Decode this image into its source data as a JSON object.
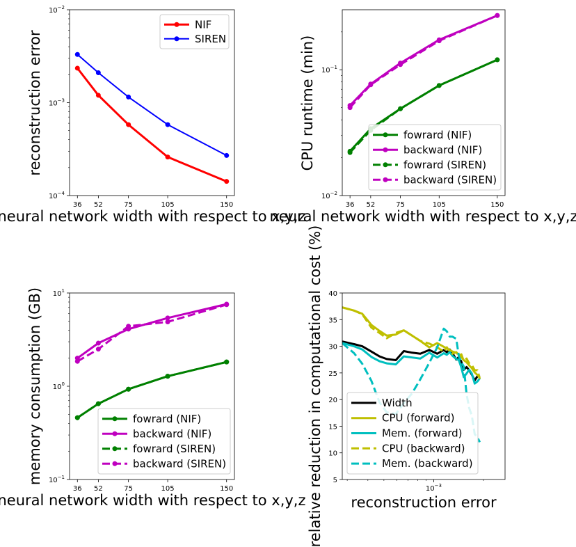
{
  "chart_data": [
    {
      "id": "p1",
      "type": "line",
      "xlabel": "neural network width with respect to x,y,z",
      "ylabel": "reconstruction error",
      "xscale": "linear",
      "yscale": "log",
      "xlim": [
        30,
        156
      ],
      "ylim": [
        0.0001,
        0.01
      ],
      "xticks": [
        36,
        52,
        75,
        105,
        150
      ],
      "yticks": [
        {
          "v": 0.0001,
          "m": "10",
          "e": "−4"
        },
        {
          "v": 0.001,
          "m": "10",
          "e": "−3"
        },
        {
          "v": 0.01,
          "m": "10",
          "e": "−2"
        }
      ],
      "legend_position": "upper right",
      "grid": false,
      "series": [
        {
          "name": "NIF",
          "color": "#ff0000",
          "dash": "solid",
          "width": 3,
          "marker": true,
          "x": [
            36,
            52,
            75,
            105,
            150
          ],
          "y": [
            0.00235,
            0.0012,
            0.00058,
            0.00026,
            0.000142
          ]
        },
        {
          "name": "SIREN",
          "color": "#0000ff",
          "dash": "solid",
          "width": 2,
          "marker": true,
          "x": [
            36,
            52,
            75,
            105,
            150
          ],
          "y": [
            0.0033,
            0.0021,
            0.00115,
            0.00058,
            0.00027
          ]
        }
      ]
    },
    {
      "id": "p2",
      "type": "line",
      "xlabel": "neural network width with respect to x,y,z",
      "ylabel": "CPU runtime (min)",
      "xscale": "linear",
      "yscale": "log",
      "xlim": [
        30,
        156
      ],
      "ylim": [
        0.01,
        0.3
      ],
      "xticks": [
        36,
        52,
        75,
        105,
        150
      ],
      "yticks": [
        {
          "v": 0.01,
          "m": "10",
          "e": "−2"
        },
        {
          "v": 0.1,
          "m": "10",
          "e": "−1"
        }
      ],
      "legend_position": "lower right",
      "grid": false,
      "series": [
        {
          "name": "fowrard (NIF)",
          "color": "#008000",
          "dash": "solid",
          "width": 3,
          "marker": true,
          "x": [
            36,
            52,
            75,
            105,
            150
          ],
          "y": [
            0.0225,
            0.034,
            0.049,
            0.075,
            0.12
          ]
        },
        {
          "name": "backward (NIF)",
          "color": "#bf00bf",
          "dash": "solid",
          "width": 3,
          "marker": true,
          "x": [
            36,
            52,
            75,
            105,
            150
          ],
          "y": [
            0.052,
            0.077,
            0.113,
            0.173,
            0.27
          ]
        },
        {
          "name": "fowrard (SIREN)",
          "color": "#008000",
          "dash": "dashed",
          "width": 3,
          "marker": true,
          "x": [
            36,
            52,
            75,
            105,
            150
          ],
          "y": [
            0.022,
            0.033,
            0.049,
            0.075,
            0.12
          ]
        },
        {
          "name": "backward (SIREN)",
          "color": "#bf00bf",
          "dash": "dashed",
          "width": 3,
          "marker": true,
          "x": [
            36,
            52,
            75,
            105,
            150
          ],
          "y": [
            0.05,
            0.076,
            0.11,
            0.17,
            0.27
          ]
        }
      ]
    },
    {
      "id": "p3",
      "type": "line",
      "xlabel": "neural network width with respect to x,y,z",
      "ylabel": "memory consumption (GB)",
      "xscale": "linear",
      "yscale": "log",
      "xlim": [
        30,
        156
      ],
      "ylim": [
        0.1,
        10
      ],
      "xticks": [
        36,
        52,
        75,
        105,
        150
      ],
      "yticks": [
        {
          "v": 0.1,
          "m": "10",
          "e": "−1"
        },
        {
          "v": 1,
          "m": "10",
          "e": "0"
        },
        {
          "v": 10,
          "m": "10",
          "e": "1"
        }
      ],
      "legend_position": "lower right",
      "grid": false,
      "series": [
        {
          "name": "fowrard (NIF)",
          "color": "#008000",
          "dash": "solid",
          "width": 3,
          "marker": true,
          "x": [
            36,
            52,
            75,
            105,
            150
          ],
          "y": [
            0.46,
            0.65,
            0.93,
            1.28,
            1.82
          ]
        },
        {
          "name": "backward (NIF)",
          "color": "#bf00bf",
          "dash": "solid",
          "width": 3,
          "marker": true,
          "x": [
            36,
            52,
            75,
            105,
            150
          ],
          "y": [
            2.0,
            2.9,
            4.1,
            5.4,
            7.6
          ]
        },
        {
          "name": "fowrard (SIREN)",
          "color": "#008000",
          "dash": "dashed",
          "width": 3,
          "marker": true,
          "x": [
            36,
            52,
            75,
            105,
            150
          ],
          "y": [
            0.46,
            0.65,
            0.93,
            1.28,
            1.82
          ]
        },
        {
          "name": "backward (SIREN)",
          "color": "#bf00bf",
          "dash": "dashed",
          "width": 3,
          "marker": true,
          "x": [
            36,
            52,
            75,
            105,
            150
          ],
          "y": [
            1.85,
            2.5,
            4.4,
            4.9,
            7.5
          ]
        }
      ]
    },
    {
      "id": "p4",
      "type": "line",
      "xlabel": "reconstruction error",
      "ylabel": "relative reduction in computational cost (%)",
      "xscale": "log",
      "yscale": "linear",
      "xlim": [
        0.00028,
        0.0027
      ],
      "ylim": [
        5,
        40
      ],
      "xticks": [
        {
          "v": 0.001,
          "m": "10",
          "e": "−3"
        }
      ],
      "yticks": [
        5,
        10,
        15,
        20,
        25,
        30,
        35,
        40
      ],
      "legend_position": "lower left",
      "grid": false,
      "series": [
        {
          "name": "Width",
          "color": "#000000",
          "dash": "solid",
          "width": 3,
          "marker": false,
          "x": [
            0.00028,
            0.00033,
            0.00037,
            0.00042,
            0.00047,
            0.00052,
            0.00059,
            0.00066,
            0.00074,
            0.00083,
            0.00094,
            0.00105,
            0.00115,
            0.0012,
            0.00125,
            0.0013,
            0.00137,
            0.00142,
            0.00147,
            0.00152,
            0.00158,
            0.00164,
            0.0017,
            0.00177,
            0.00184,
            0.0019
          ],
          "y": [
            30.9,
            30.4,
            30.0,
            29.0,
            28.1,
            27.6,
            27.4,
            29.1,
            28.8,
            28.6,
            29.3,
            28.6,
            29.3,
            28.9,
            29.4,
            28.7,
            27.5,
            28.0,
            27.1,
            25.6,
            26.1,
            25.5,
            24.7,
            23.6,
            24.4,
            24.6
          ]
        },
        {
          "name": "CPU (forward)",
          "color": "#bfbf00",
          "dash": "solid",
          "width": 3,
          "marker": false,
          "x": [
            0.00028,
            0.00033,
            0.00037,
            0.00042,
            0.00047,
            0.00052,
            0.00059,
            0.00066,
            0.00074,
            0.00083,
            0.00094,
            0.00105,
            0.00115,
            0.0012,
            0.00125,
            0.0013,
            0.00137,
            0.00142,
            0.00147,
            0.00152,
            0.00158,
            0.00164,
            0.0017,
            0.00177,
            0.00184,
            0.0019
          ],
          "y": [
            37.3,
            36.7,
            36.1,
            34.0,
            32.9,
            32.0,
            32.2,
            33.0,
            32.0,
            31.0,
            29.8,
            30.6,
            29.9,
            29.6,
            29.3,
            29.0,
            28.8,
            28.5,
            28.0,
            27.4,
            27.0,
            26.4,
            25.9,
            25.1,
            24.6,
            24.1
          ]
        },
        {
          "name": "Mem. (forward)",
          "color": "#00bfbf",
          "dash": "solid",
          "width": 3,
          "marker": false,
          "x": [
            0.00028,
            0.00033,
            0.00037,
            0.00042,
            0.00047,
            0.00052,
            0.00059,
            0.00066,
            0.00074,
            0.00083,
            0.00094,
            0.00105,
            0.00115,
            0.0012,
            0.00125,
            0.0013,
            0.00137,
            0.00142,
            0.00147,
            0.00152,
            0.00158,
            0.00164,
            0.0017,
            0.00177,
            0.00184,
            0.0019
          ],
          "y": [
            30.6,
            30.0,
            29.4,
            28.0,
            27.2,
            26.8,
            26.6,
            28.1,
            27.9,
            27.7,
            28.8,
            27.9,
            28.7,
            28.4,
            28.9,
            28.2,
            27.6,
            27.4,
            26.0,
            24.2,
            24.9,
            25.6,
            24.9,
            23.0,
            23.4,
            24.0
          ]
        },
        {
          "name": "CPU (backward)",
          "color": "#bfbf00",
          "dash": "dashed",
          "width": 3,
          "marker": false,
          "x": [
            0.00028,
            0.00033,
            0.00037,
            0.00042,
            0.00047,
            0.00052,
            0.00059,
            0.00066,
            0.00074,
            0.00083,
            0.00094,
            0.00105,
            0.00115,
            0.0012,
            0.00125,
            0.0013,
            0.00137,
            0.00142,
            0.00147,
            0.00152,
            0.00158,
            0.00164,
            0.0017,
            0.00177,
            0.00184,
            0.0019
          ],
          "y": [
            37.3,
            36.7,
            36.0,
            33.5,
            32.5,
            31.5,
            32.5,
            33.0,
            32.0,
            31.0,
            30.5,
            29.8,
            29.0,
            29.8,
            29.0,
            28.6,
            28.9,
            28.2,
            28.5,
            27.2,
            27.7,
            26.8,
            26.5,
            25.5,
            25.5,
            23.9
          ]
        },
        {
          "name": "Mem. (backward)",
          "color": "#00bfbf",
          "dash": "dashed",
          "width": 3,
          "marker": false,
          "x": [
            0.00028,
            0.00033,
            0.00037,
            0.00042,
            0.00047,
            0.00052,
            0.00059,
            0.00066,
            0.00074,
            0.00083,
            0.00094,
            0.00105,
            0.00115,
            0.0012,
            0.00125,
            0.0013,
            0.00137,
            0.00142,
            0.00147,
            0.00152,
            0.00158,
            0.00164,
            0.0017,
            0.00177,
            0.00184,
            0.0019
          ],
          "y": [
            30.6,
            28.7,
            26.7,
            23.5,
            19.5,
            17.6,
            17.3,
            19.3,
            21.2,
            23.8,
            26.9,
            29.8,
            33.3,
            32.8,
            31.8,
            31.8,
            31.4,
            28.1,
            27.0,
            26.2,
            21.0,
            18.4,
            17.0,
            13.5,
            12.9,
            12.0
          ]
        }
      ]
    }
  ]
}
